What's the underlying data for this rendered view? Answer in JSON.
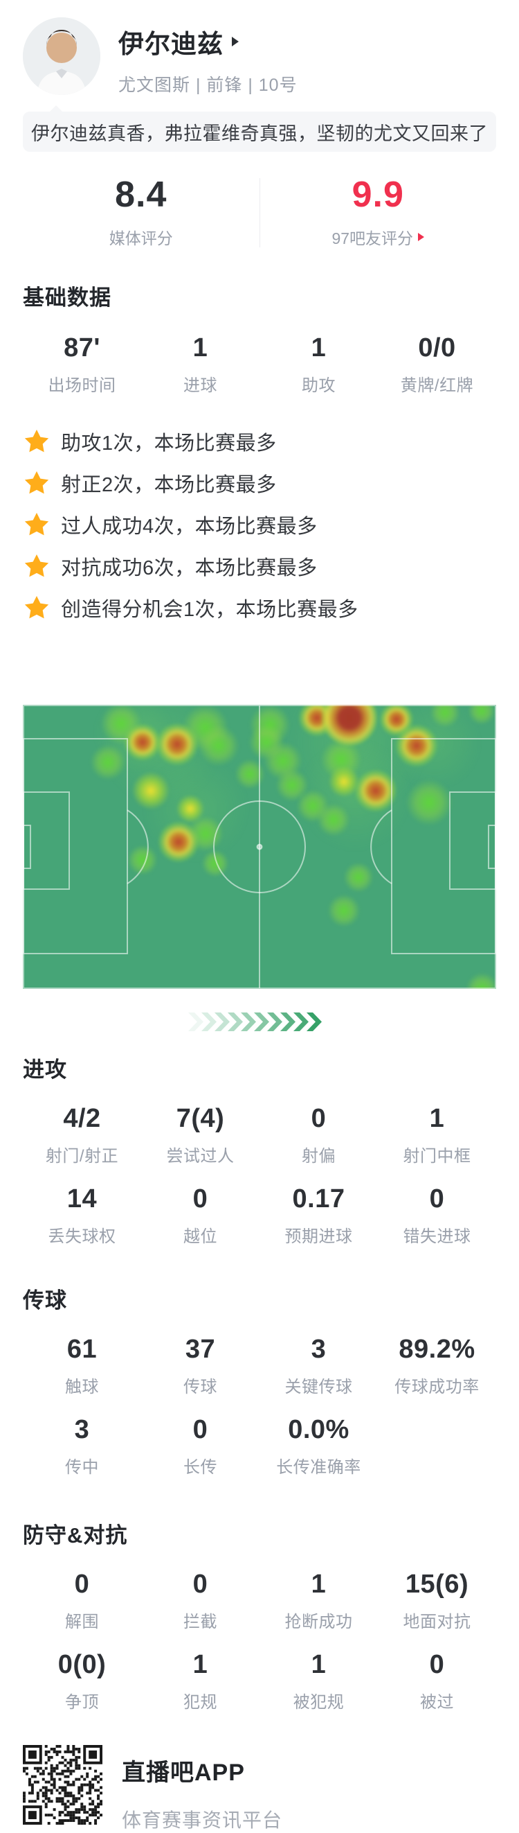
{
  "header": {
    "name": "伊尔迪兹",
    "team_info": "尤文图斯 | 前锋 | 10号",
    "comment": "伊尔迪兹真香，弗拉霍维奇真强，坚韧的尤文又回来了"
  },
  "ratings": {
    "media_score": "8.4",
    "media_label": "媒体评分",
    "fans_score": "9.9",
    "fans_label": "97吧友评分"
  },
  "highlights": [
    "助攻1次，本场比赛最多",
    "射正2次，本场比赛最多",
    "过人成功4次，本场比赛最多",
    "对抗成功6次，本场比赛最多",
    "创造得分机会1次，本场比赛最多"
  ],
  "sections": {
    "basic": {
      "title": "基础数据",
      "rows": [
        [
          {
            "v": "87'",
            "l": "出场时间"
          },
          {
            "v": "1",
            "l": "进球"
          },
          {
            "v": "1",
            "l": "助攻"
          },
          {
            "v": "0/0",
            "l": "黄牌/红牌"
          }
        ]
      ]
    },
    "attack": {
      "title": "进攻",
      "rows": [
        [
          {
            "v": "4/2",
            "l": "射门/射正"
          },
          {
            "v": "7(4)",
            "l": "尝试过人"
          },
          {
            "v": "0",
            "l": "射偏"
          },
          {
            "v": "1",
            "l": "射门中框"
          }
        ],
        [
          {
            "v": "14",
            "l": "丢失球权"
          },
          {
            "v": "0",
            "l": "越位"
          },
          {
            "v": "0.17",
            "l": "预期进球"
          },
          {
            "v": "0",
            "l": "错失进球"
          }
        ]
      ]
    },
    "passing": {
      "title": "传球",
      "rows": [
        [
          {
            "v": "61",
            "l": "触球"
          },
          {
            "v": "37",
            "l": "传球"
          },
          {
            "v": "3",
            "l": "关键传球"
          },
          {
            "v": "89.2%",
            "l": "传球成功率"
          }
        ],
        [
          {
            "v": "3",
            "l": "传中"
          },
          {
            "v": "0",
            "l": "长传"
          },
          {
            "v": "0.0%",
            "l": "长传准确率"
          }
        ]
      ]
    },
    "defense": {
      "title": "防守&对抗",
      "rows": [
        [
          {
            "v": "0",
            "l": "解围"
          },
          {
            "v": "0",
            "l": "拦截"
          },
          {
            "v": "1",
            "l": "抢断成功"
          },
          {
            "v": "15(6)",
            "l": "地面对抗"
          }
        ],
        [
          {
            "v": "0(0)",
            "l": "争顶"
          },
          {
            "v": "1",
            "l": "犯规"
          },
          {
            "v": "1",
            "l": "被犯规"
          },
          {
            "v": "0",
            "l": "被过"
          }
        ]
      ]
    }
  },
  "heatmap": {
    "pitch_color": "#46a577",
    "line_color": "rgba(255,255,255,0.55)",
    "spots": [
      [
        200,
        60,
        90,
        "wash"
      ],
      [
        480,
        55,
        110,
        "wash"
      ],
      [
        250,
        150,
        80,
        "wash"
      ],
      [
        480,
        130,
        85,
        "wash"
      ],
      [
        595,
        55,
        70,
        "wash"
      ],
      [
        160,
        40,
        60,
        "wash"
      ],
      [
        123,
        83,
        26,
        "g"
      ],
      [
        142,
        27,
        30,
        "g"
      ],
      [
        264,
        33,
        34,
        "g"
      ],
      [
        283,
        59,
        30,
        "g"
      ],
      [
        173,
        224,
        22,
        "g"
      ],
      [
        264,
        186,
        26,
        "g"
      ],
      [
        278,
        229,
        20,
        "g"
      ],
      [
        357,
        29,
        30,
        "g"
      ],
      [
        352,
        54,
        26,
        "g"
      ],
      [
        376,
        81,
        28,
        "g"
      ],
      [
        328,
        100,
        22,
        "g"
      ],
      [
        460,
        79,
        30,
        "g"
      ],
      [
        389,
        116,
        24,
        "g"
      ],
      [
        419,
        146,
        24,
        "g"
      ],
      [
        449,
        166,
        24,
        "g"
      ],
      [
        587,
        141,
        34,
        "g"
      ],
      [
        610,
        11,
        22,
        "g"
      ],
      [
        663,
        9,
        20,
        "g"
      ],
      [
        485,
        249,
        22,
        "g"
      ],
      [
        464,
        297,
        24,
        "g"
      ],
      [
        664,
        410,
        24,
        "g"
      ],
      [
        242,
        150,
        20,
        "y"
      ],
      [
        464,
        111,
        22,
        "y"
      ],
      [
        185,
        124,
        27,
        "y"
      ],
      [
        173,
        54,
        26,
        "r"
      ],
      [
        223,
        57,
        30,
        "r"
      ],
      [
        225,
        198,
        29,
        "r"
      ],
      [
        425,
        19,
        26,
        "r"
      ],
      [
        472,
        19,
        40,
        "R"
      ],
      [
        540,
        21,
        24,
        "r"
      ],
      [
        569,
        59,
        30,
        "r"
      ],
      [
        510,
        124,
        30,
        "r"
      ]
    ]
  },
  "chevrons": {
    "count": 10,
    "color": "#2f9e63"
  },
  "footer": {
    "app_name": "直播吧APP",
    "app_desc": "体育赛事资讯平台"
  },
  "colors": {
    "accent_red": "#f0304e",
    "star_orange": "#ffad1a"
  }
}
